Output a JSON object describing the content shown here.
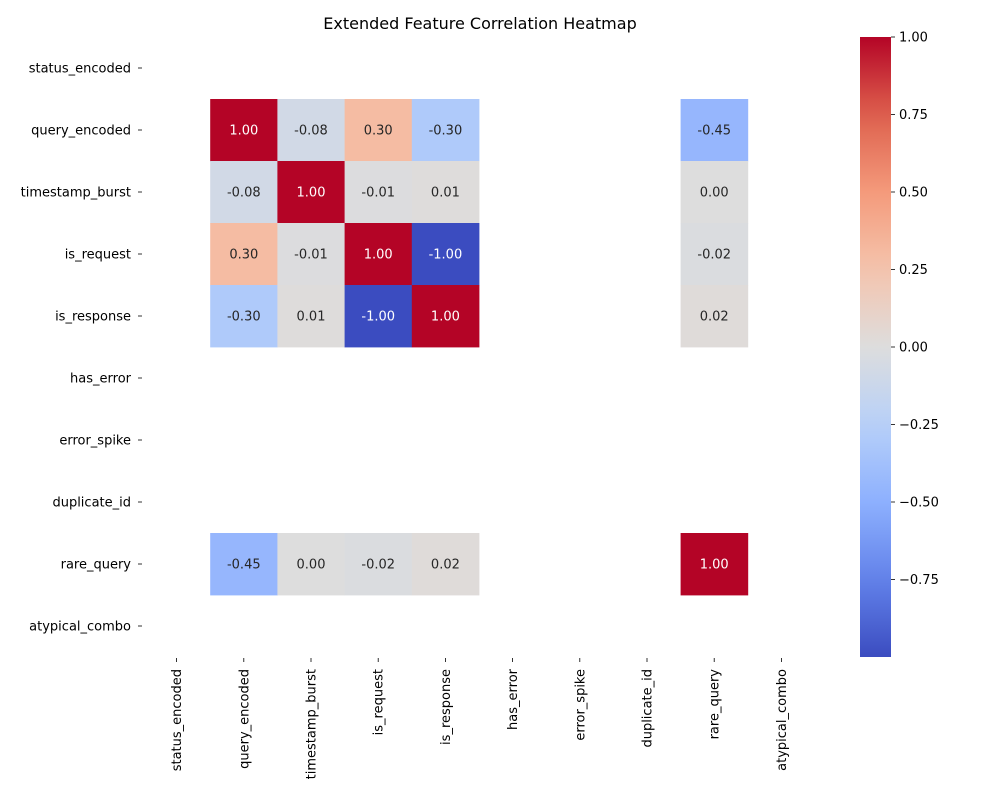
{
  "chart_data": {
    "type": "heatmap",
    "title": "Extended Feature Correlation Heatmap",
    "colormap": "coolwarm",
    "row_labels": [
      "status_encoded",
      "query_encoded",
      "timestamp_burst",
      "is_request",
      "is_response",
      "has_error",
      "error_spike",
      "duplicate_id",
      "rare_query",
      "atypical_combo"
    ],
    "col_labels": [
      "status_encoded",
      "query_encoded",
      "timestamp_burst",
      "is_request",
      "is_response",
      "has_error",
      "error_spike",
      "duplicate_id",
      "rare_query",
      "atypical_combo"
    ],
    "values": [
      [
        null,
        null,
        null,
        null,
        null,
        null,
        null,
        null,
        null,
        null
      ],
      [
        null,
        1.0,
        -0.08,
        0.3,
        -0.3,
        null,
        null,
        null,
        -0.45,
        null
      ],
      [
        null,
        -0.08,
        1.0,
        -0.01,
        0.01,
        null,
        null,
        null,
        0.0,
        null
      ],
      [
        null,
        0.3,
        -0.01,
        1.0,
        -1.0,
        null,
        null,
        null,
        -0.02,
        null
      ],
      [
        null,
        -0.3,
        0.01,
        -1.0,
        1.0,
        null,
        null,
        null,
        0.02,
        null
      ],
      [
        null,
        null,
        null,
        null,
        null,
        null,
        null,
        null,
        null,
        null
      ],
      [
        null,
        null,
        null,
        null,
        null,
        null,
        null,
        null,
        null,
        null
      ],
      [
        null,
        null,
        null,
        null,
        null,
        null,
        null,
        null,
        null,
        null
      ],
      [
        null,
        -0.45,
        0.0,
        -0.02,
        0.02,
        null,
        null,
        null,
        1.0,
        null
      ],
      [
        null,
        null,
        null,
        null,
        null,
        null,
        null,
        null,
        null,
        null
      ]
    ],
    "value_format": "0.00",
    "colorbar": {
      "min": -1.0,
      "max": 1.0,
      "ticks": [
        1.0,
        0.75,
        0.5,
        0.25,
        0.0,
        -0.25,
        -0.5,
        -0.75
      ],
      "tick_labels": [
        "1.00",
        "0.75",
        "0.50",
        "0.25",
        "0.00",
        "−0.25",
        "−0.50",
        "−0.75"
      ]
    }
  }
}
